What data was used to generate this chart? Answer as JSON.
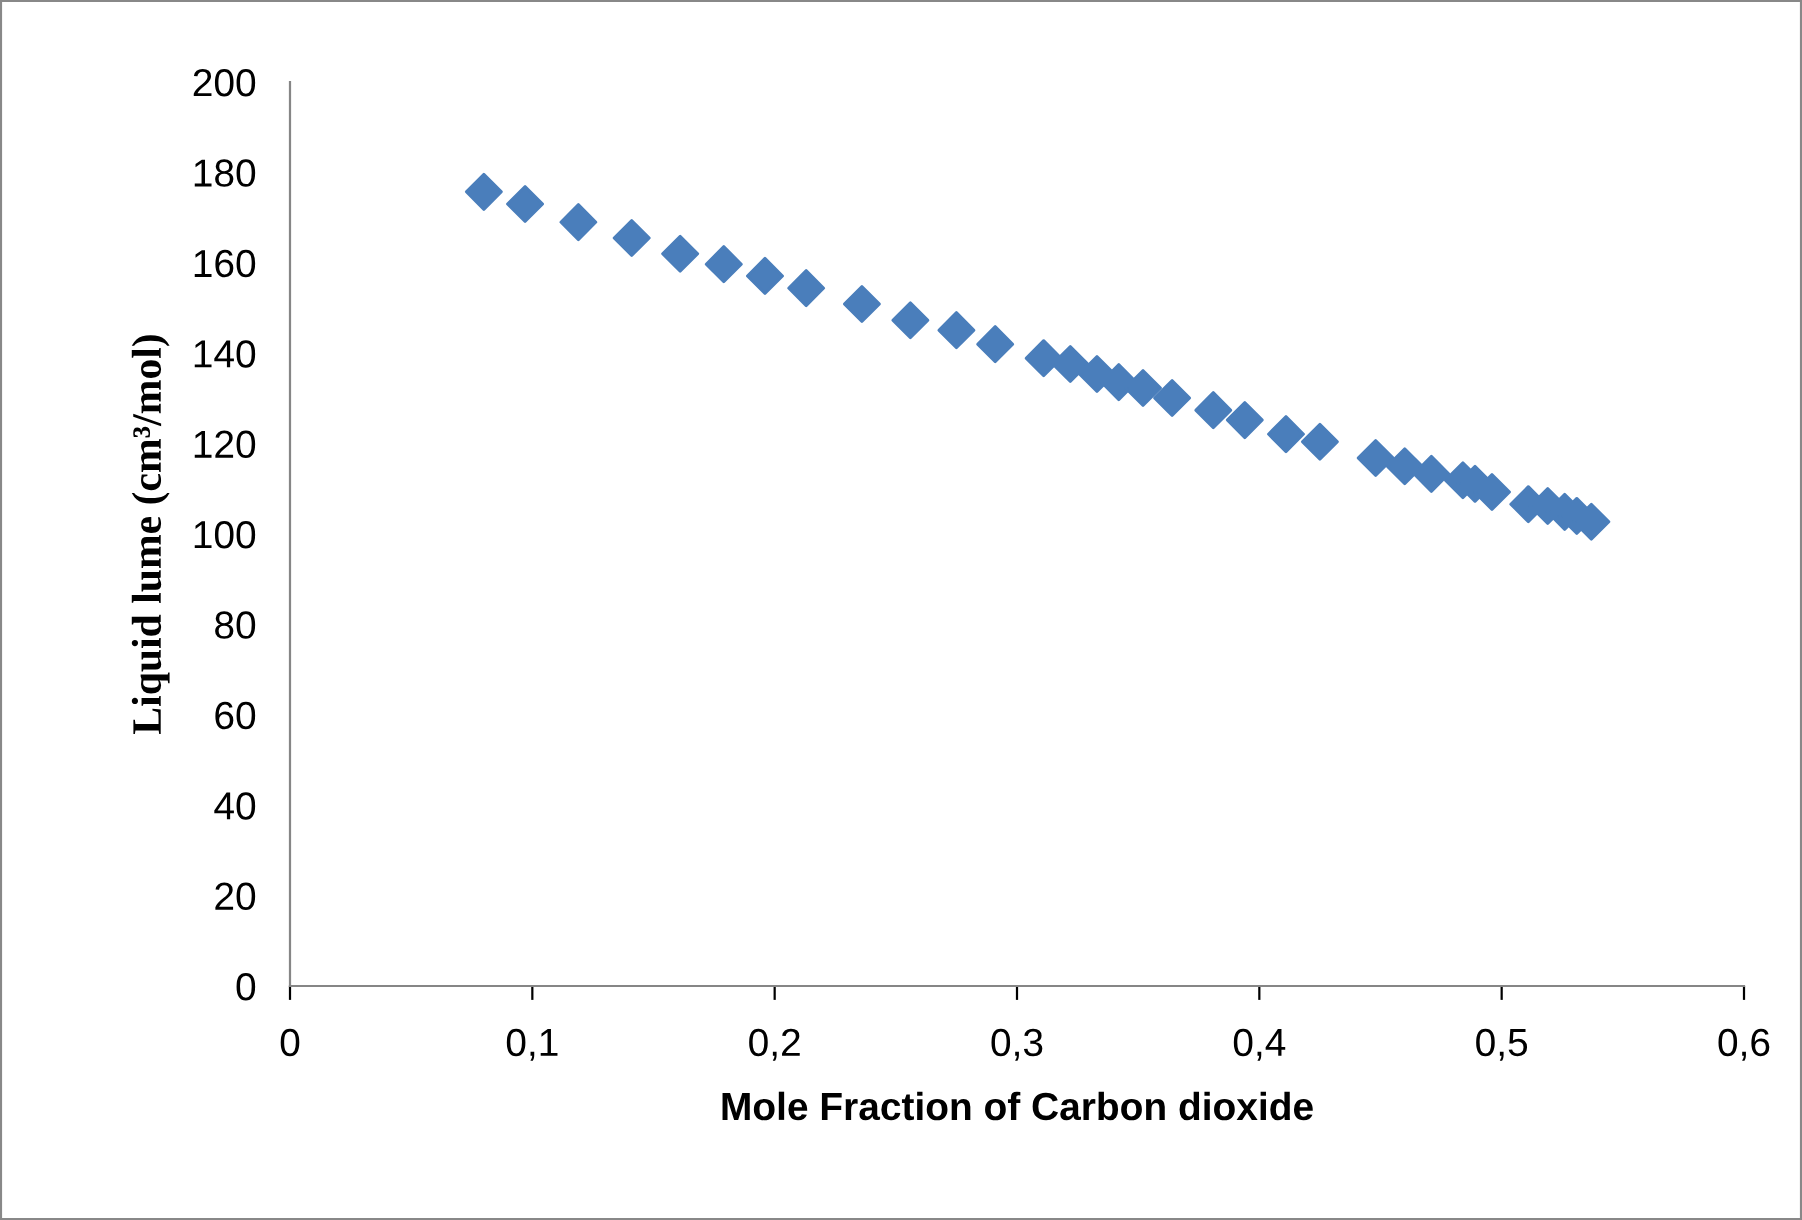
{
  "chart_data": {
    "type": "scatter",
    "xlabel": "Mole Fraction of Carbon dioxide",
    "ylabel": "Liquid lume (cm³/mol)",
    "x": [
      0.08,
      0.097,
      0.119,
      0.141,
      0.161,
      0.179,
      0.196,
      0.213,
      0.236,
      0.256,
      0.275,
      0.291,
      0.311,
      0.322,
      0.333,
      0.342,
      0.352,
      0.364,
      0.381,
      0.394,
      0.411,
      0.425,
      0.448,
      0.46,
      0.471,
      0.484,
      0.489,
      0.496,
      0.511,
      0.519,
      0.526,
      0.531,
      0.537
    ],
    "series": [
      {
        "color": "#4a7ebb",
        "values": [
          175.7,
          173.0,
          169.0,
          165.5,
          162.0,
          159.7,
          157.1,
          154.4,
          150.9,
          147.3,
          145.1,
          142.0,
          138.9,
          137.6,
          135.4,
          133.6,
          132.3,
          130.1,
          127.4,
          125.2,
          122.1,
          120.4,
          116.8,
          115.0,
          113.3,
          111.9,
          111.1,
          109.3,
          106.6,
          106.2,
          104.9,
          104.0,
          102.7
        ]
      }
    ],
    "xlim": [
      0,
      0.6
    ],
    "xticks": [
      0,
      {
        "value": 0.1,
        "label": "0,1"
      },
      {
        "value": 0.2,
        "label": "0,2"
      },
      {
        "value": 0.3,
        "label": "0,3"
      },
      {
        "value": 0.4,
        "label": "0,4"
      },
      {
        "value": 0.5,
        "label": "0,5"
      },
      {
        "value": 0.6,
        "label": "0,6"
      }
    ],
    "ylim": [
      0,
      200
    ],
    "yticks": [
      0,
      20,
      40,
      60,
      80,
      100,
      120,
      140,
      160,
      180,
      200
    ],
    "marker": "diamond",
    "grid": false,
    "legend": false
  }
}
